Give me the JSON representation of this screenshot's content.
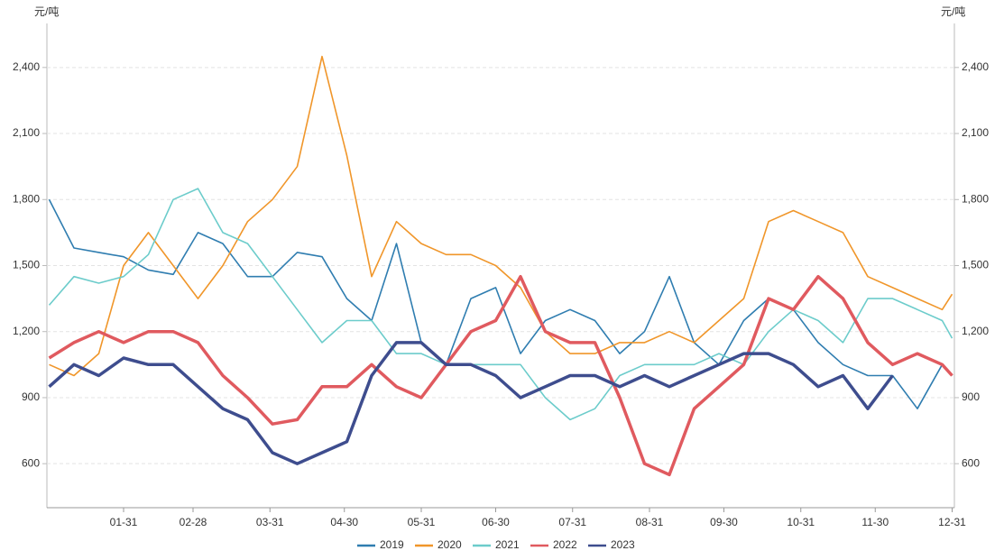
{
  "chart_data": {
    "type": "line",
    "ylabel": "元/吨",
    "y2label": "元/吨",
    "x": [
      1,
      11,
      21,
      31,
      41,
      51,
      61,
      71,
      81,
      91,
      101,
      111,
      121,
      131,
      141,
      151,
      161,
      171,
      181,
      191,
      201,
      211,
      221,
      231,
      241,
      251,
      261,
      271,
      281,
      291,
      301,
      311,
      321,
      331,
      341,
      351,
      361,
      365
    ],
    "xlim": [
      1,
      365
    ],
    "xticks": [
      {
        "value": 31,
        "label": "01-31"
      },
      {
        "value": 59,
        "label": "02-28"
      },
      {
        "value": 90,
        "label": "03-31"
      },
      {
        "value": 120,
        "label": "04-30"
      },
      {
        "value": 151,
        "label": "05-31"
      },
      {
        "value": 181,
        "label": "06-30"
      },
      {
        "value": 212,
        "label": "07-31"
      },
      {
        "value": 243,
        "label": "08-31"
      },
      {
        "value": 273,
        "label": "09-30"
      },
      {
        "value": 304,
        "label": "10-31"
      },
      {
        "value": 334,
        "label": "11-30"
      },
      {
        "value": 365,
        "label": "12-31"
      }
    ],
    "ylim": [
      400,
      2600
    ],
    "yticks": [
      600,
      900,
      {
        "value": 1200,
        "label": "1,200"
      },
      {
        "value": 1500,
        "label": "1,500"
      },
      {
        "value": 1800,
        "label": "1,800"
      },
      {
        "value": 2100,
        "label": "2,100"
      },
      {
        "value": 2400,
        "label": "2,400"
      }
    ],
    "y2lim": [
      400,
      2600
    ],
    "y2ticks": [
      600,
      900,
      {
        "value": 1200,
        "label": "1,200"
      },
      {
        "value": 1500,
        "label": "1,500"
      },
      {
        "value": 1800,
        "label": "1,800"
      },
      {
        "value": 2100,
        "label": "2,100"
      },
      {
        "value": 2400,
        "label": "2,400"
      }
    ],
    "grid": true,
    "legend": "bottom",
    "series": [
      {
        "name": "2019",
        "color": "#2f7db0",
        "values": [
          1800,
          1580,
          1560,
          1540,
          1480,
          1460,
          1650,
          1600,
          1450,
          1450,
          1560,
          1540,
          1350,
          1250,
          1600,
          1150,
          1050,
          1350,
          1400,
          1100,
          1250,
          1300,
          1250,
          1100,
          1200,
          1450,
          1150,
          1050,
          1250,
          1350,
          1300,
          1150,
          1050,
          1000,
          1000,
          850,
          1050,
          1000
        ]
      },
      {
        "name": "2020",
        "color": "#f0962a",
        "values": [
          1050,
          1000,
          1100,
          1500,
          1650,
          1500,
          1350,
          1500,
          1700,
          1800,
          1950,
          2450,
          2000,
          1450,
          1700,
          1600,
          1550,
          1550,
          1500,
          1400,
          1200,
          1100,
          1100,
          1150,
          1150,
          1200,
          1150,
          1250,
          1350,
          1700,
          1750,
          1700,
          1650,
          1450,
          1400,
          1350,
          1300,
          1370
        ]
      },
      {
        "name": "2021",
        "color": "#6ccccb",
        "values": [
          1320,
          1450,
          1420,
          1450,
          1550,
          1800,
          1850,
          1650,
          1600,
          1450,
          1300,
          1150,
          1250,
          1250,
          1100,
          1100,
          1050,
          1050,
          1050,
          1050,
          900,
          800,
          850,
          1000,
          1050,
          1050,
          1050,
          1100,
          1050,
          1200,
          1300,
          1250,
          1150,
          1350,
          1350,
          1300,
          1250,
          1170
        ]
      },
      {
        "name": "2022",
        "color": "#e05a5f",
        "values": [
          1080,
          1150,
          1200,
          1150,
          1200,
          1200,
          1150,
          1000,
          900,
          780,
          800,
          950,
          950,
          1050,
          950,
          900,
          1050,
          1200,
          1250,
          1450,
          1200,
          1150,
          1150,
          900,
          600,
          550,
          850,
          950,
          1050,
          1350,
          1300,
          1450,
          1350,
          1150,
          1050,
          1100,
          1050,
          1000
        ]
      },
      {
        "name": "2023",
        "color": "#3e4d8e",
        "values": [
          950,
          1050,
          1000,
          1080,
          1050,
          1050,
          950,
          850,
          800,
          650,
          600,
          650,
          700,
          1000,
          1150,
          1150,
          1050,
          1050,
          1000,
          900,
          950,
          1000,
          1000,
          950,
          1000,
          950,
          1000,
          1050,
          1100,
          1100,
          1050,
          950,
          1000,
          850,
          1000,
          null,
          null,
          null
        ]
      }
    ]
  }
}
